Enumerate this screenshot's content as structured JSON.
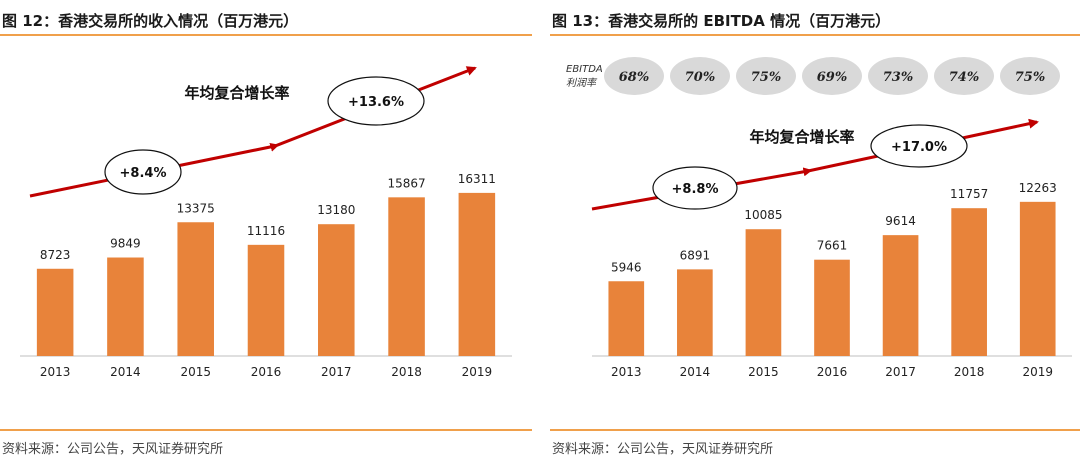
{
  "colors": {
    "bar": "#e8833a",
    "arrow": "#c00000",
    "rule": "#f0a04b",
    "ellipse_fill": "#d9d9d9"
  },
  "chart_data": [
    {
      "type": "bar",
      "title": "图 12：香港交易所的收入情况（百万港元）",
      "categories": [
        "2013",
        "2014",
        "2015",
        "2016",
        "2017",
        "2018",
        "2019"
      ],
      "values": [
        8723,
        9849,
        13375,
        11116,
        13180,
        15867,
        16311
      ],
      "annotation_label": "年均复合增长率",
      "growth_labels": [
        "+8.4%",
        "+13.6%"
      ],
      "ylim": [
        0,
        22000
      ],
      "source": "资料来源：公司公告，天风证券研究所"
    },
    {
      "type": "bar",
      "title": "图 13：香港交易所的 EBITDA 情况（百万港元）",
      "categories": [
        "2013",
        "2014",
        "2015",
        "2016",
        "2017",
        "2018",
        "2019"
      ],
      "values": [
        5946,
        6891,
        10085,
        7661,
        9614,
        11757,
        12263
      ],
      "annotation_label": "年均复合增长率",
      "growth_labels": [
        "+8.8%",
        "+17.0%"
      ],
      "margin_label": [
        "EBITDA",
        "利润率"
      ],
      "margins": [
        "68%",
        "70%",
        "75%",
        "69%",
        "73%",
        "74%",
        "75%"
      ],
      "ylim": [
        0,
        17500
      ],
      "source": "资料来源：公司公告，天风证券研究所"
    }
  ]
}
